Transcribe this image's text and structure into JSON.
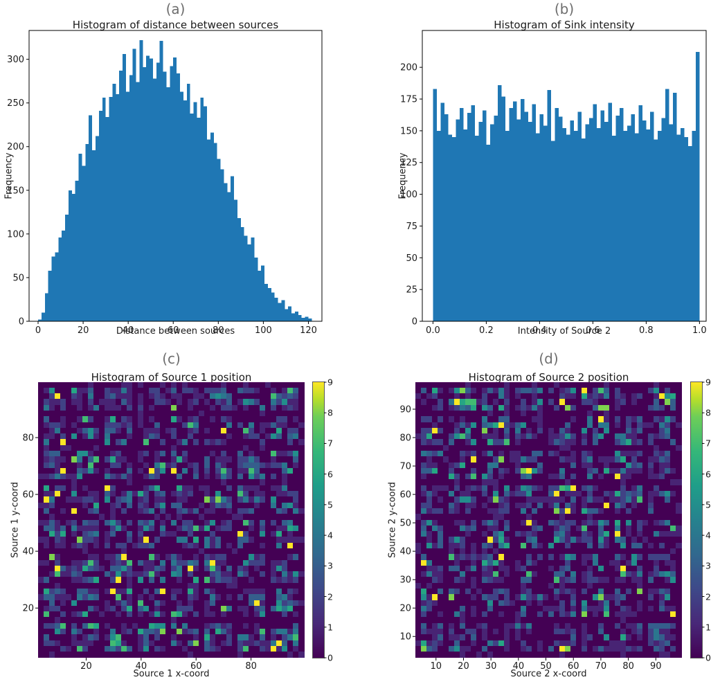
{
  "page": {
    "background": "#ffffff"
  },
  "colors": {
    "bar": "#1f77b4",
    "panel_label": "#6e6e6e",
    "axis": "#000000"
  },
  "viridis": [
    [
      0,
      "#440154"
    ],
    [
      0.125,
      "#482878"
    ],
    [
      0.25,
      "#3e4989"
    ],
    [
      0.375,
      "#31688e"
    ],
    [
      0.5,
      "#26828e"
    ],
    [
      0.625,
      "#1f9e89"
    ],
    [
      0.75,
      "#35b779"
    ],
    [
      0.875,
      "#6ece58"
    ],
    [
      0.9375,
      "#b5de2b"
    ],
    [
      1,
      "#fde725"
    ]
  ],
  "chart_data": [
    {
      "id": "a",
      "panel_label": "(a)",
      "type": "bar",
      "title": "Histogram of distance between sources",
      "xlabel": "Distance between sources",
      "ylabel": "Frequency",
      "xlim": [
        -4,
        126
      ],
      "ylim": [
        0,
        333
      ],
      "xticks": [
        0,
        20,
        40,
        60,
        80,
        100,
        120
      ],
      "xtick_labels": [
        "0",
        "20",
        "40",
        "60",
        "80",
        "100",
        "120"
      ],
      "yticks": [
        0,
        50,
        100,
        150,
        200,
        250,
        300
      ],
      "ytick_labels": [
        "0",
        "50",
        "100",
        "150",
        "200",
        "250",
        "300"
      ],
      "bar_color": "#1f77b4",
      "bins": {
        "start": 0,
        "width": 1.5
      },
      "values": [
        2,
        10,
        32,
        58,
        74,
        79,
        96,
        104,
        122,
        150,
        146,
        161,
        192,
        178,
        203,
        236,
        196,
        212,
        241,
        256,
        234,
        257,
        272,
        260,
        287,
        306,
        263,
        282,
        312,
        274,
        322,
        291,
        304,
        301,
        278,
        296,
        321,
        286,
        268,
        292,
        302,
        284,
        263,
        253,
        272,
        238,
        251,
        233,
        256,
        246,
        208,
        216,
        204,
        186,
        174,
        158,
        148,
        166,
        139,
        118,
        108,
        98,
        88,
        96,
        73,
        58,
        64,
        43,
        38,
        33,
        27,
        21,
        24,
        14,
        17,
        9,
        11,
        7,
        4,
        5,
        3
      ]
    },
    {
      "id": "b",
      "panel_label": "(b)",
      "type": "bar",
      "title": "Histogram of Sink intensity",
      "xlabel": "Intensity of Source 2",
      "ylabel": "Frequency",
      "xlim": [
        -0.04,
        1.025
      ],
      "ylim": [
        0,
        229
      ],
      "xticks": [
        0,
        0.2,
        0.4,
        0.6,
        0.8,
        1.0
      ],
      "xtick_labels": [
        "0.0",
        "0.2",
        "0.4",
        "0.6",
        "0.8",
        "1.0"
      ],
      "yticks": [
        0,
        25,
        50,
        75,
        100,
        125,
        150,
        175,
        200
      ],
      "ytick_labels": [
        "0",
        "25",
        "50",
        "75",
        "100",
        "125",
        "150",
        "175",
        "200"
      ],
      "bar_color": "#1f77b4",
      "bins": {
        "start": 0,
        "width": 0.0142857
      },
      "values": [
        183,
        150,
        172,
        163,
        147,
        145,
        159,
        168,
        151,
        164,
        170,
        146,
        157,
        166,
        139,
        155,
        162,
        186,
        177,
        150,
        168,
        173,
        159,
        175,
        165,
        157,
        171,
        148,
        163,
        154,
        182,
        142,
        168,
        161,
        152,
        147,
        158,
        150,
        165,
        144,
        155,
        160,
        171,
        152,
        166,
        157,
        172,
        146,
        162,
        168,
        150,
        154,
        163,
        148,
        170,
        158,
        151,
        165,
        143,
        150,
        160,
        183,
        155,
        180,
        147,
        152,
        145,
        138,
        150,
        212
      ]
    },
    {
      "id": "c",
      "panel_label": "(c)",
      "type": "heatmap",
      "title": "Histogram of Source 1 position",
      "xlabel": "Source 1 x-coord",
      "ylabel": "Source 1 y-coord",
      "axis_range": [
        2.5,
        99.5
      ],
      "xticks": [
        20,
        40,
        60,
        80
      ],
      "xtick_labels": [
        "20",
        "40",
        "60",
        "80"
      ],
      "yticks": [
        20,
        40,
        60,
        80
      ],
      "ytick_labels": [
        "20",
        "40",
        "60",
        "80"
      ],
      "grid": {
        "cells": 48,
        "block_period": 6,
        "seed": 101,
        "mean": 2.2
      },
      "value_range": [
        0,
        9
      ],
      "colorbar_ticks": [
        0,
        1,
        2,
        3,
        4,
        5,
        6,
        7,
        8,
        9
      ],
      "colormap": "viridis"
    },
    {
      "id": "d",
      "panel_label": "(d)",
      "type": "heatmap",
      "title": "Histogram of Source 2 position",
      "xlabel": "Source 2 x-coord",
      "ylabel": "Source 2 y-coord",
      "axis_range": [
        2.5,
        99.5
      ],
      "xticks": [
        10,
        20,
        30,
        40,
        50,
        60,
        70,
        80,
        90
      ],
      "xtick_labels": [
        "10",
        "20",
        "30",
        "40",
        "50",
        "60",
        "70",
        "80",
        "90"
      ],
      "yticks": [
        10,
        20,
        30,
        40,
        50,
        60,
        70,
        80,
        90
      ],
      "ytick_labels": [
        "10",
        "20",
        "30",
        "40",
        "50",
        "60",
        "70",
        "80",
        "90"
      ],
      "grid": {
        "cells": 48,
        "block_period": 6,
        "seed": 202,
        "mean": 2.2
      },
      "value_range": [
        0,
        9
      ],
      "colorbar_ticks": [
        0,
        1,
        2,
        3,
        4,
        5,
        6,
        7,
        8,
        9
      ],
      "colormap": "viridis"
    }
  ]
}
